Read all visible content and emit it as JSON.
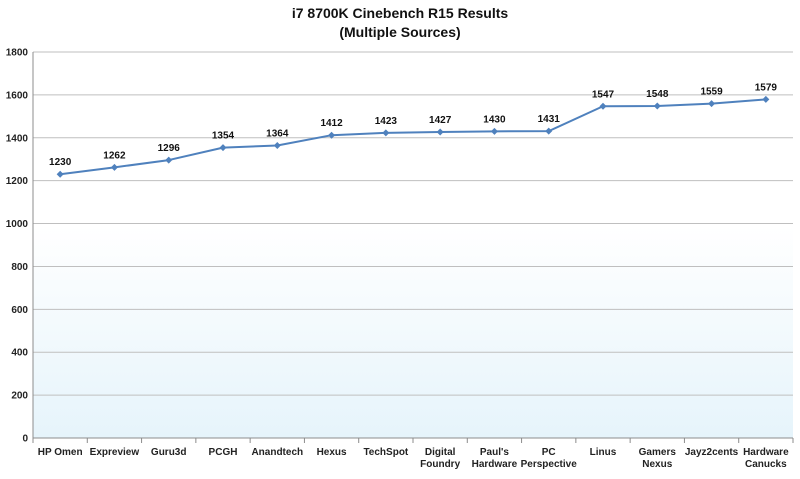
{
  "chart_data": {
    "type": "line",
    "title": "i7 8700K Cinebench R15 Results",
    "subtitle": "(Multiple Sources)",
    "xlabel": "",
    "ylabel": "",
    "categories": [
      "HP Omen",
      "Expreview",
      "Guru3d",
      "PCGH",
      "Anandtech",
      "Hexus",
      "TechSpot",
      "Digital Foundry",
      "Paul's Hardware",
      "PC Perspective",
      "Linus",
      "Gamers Nexus",
      "Jayz2cents",
      "Hardware Canucks"
    ],
    "series": [
      {
        "values": [
          1230,
          1262,
          1296,
          1354,
          1364,
          1412,
          1423,
          1427,
          1430,
          1431,
          1547,
          1548,
          1559,
          1579
        ]
      }
    ],
    "ylim": [
      0,
      1800
    ],
    "yticks": [
      0,
      200,
      400,
      600,
      800,
      1000,
      1200,
      1400,
      1600,
      1800
    ],
    "grid": true,
    "legend": "none",
    "colors": {
      "line": "#4f81bd",
      "marker": "#4f81bd",
      "grid": "#bfbfbf",
      "background_top": "#ffffff",
      "background_bottom": "#e6f4fb"
    }
  }
}
